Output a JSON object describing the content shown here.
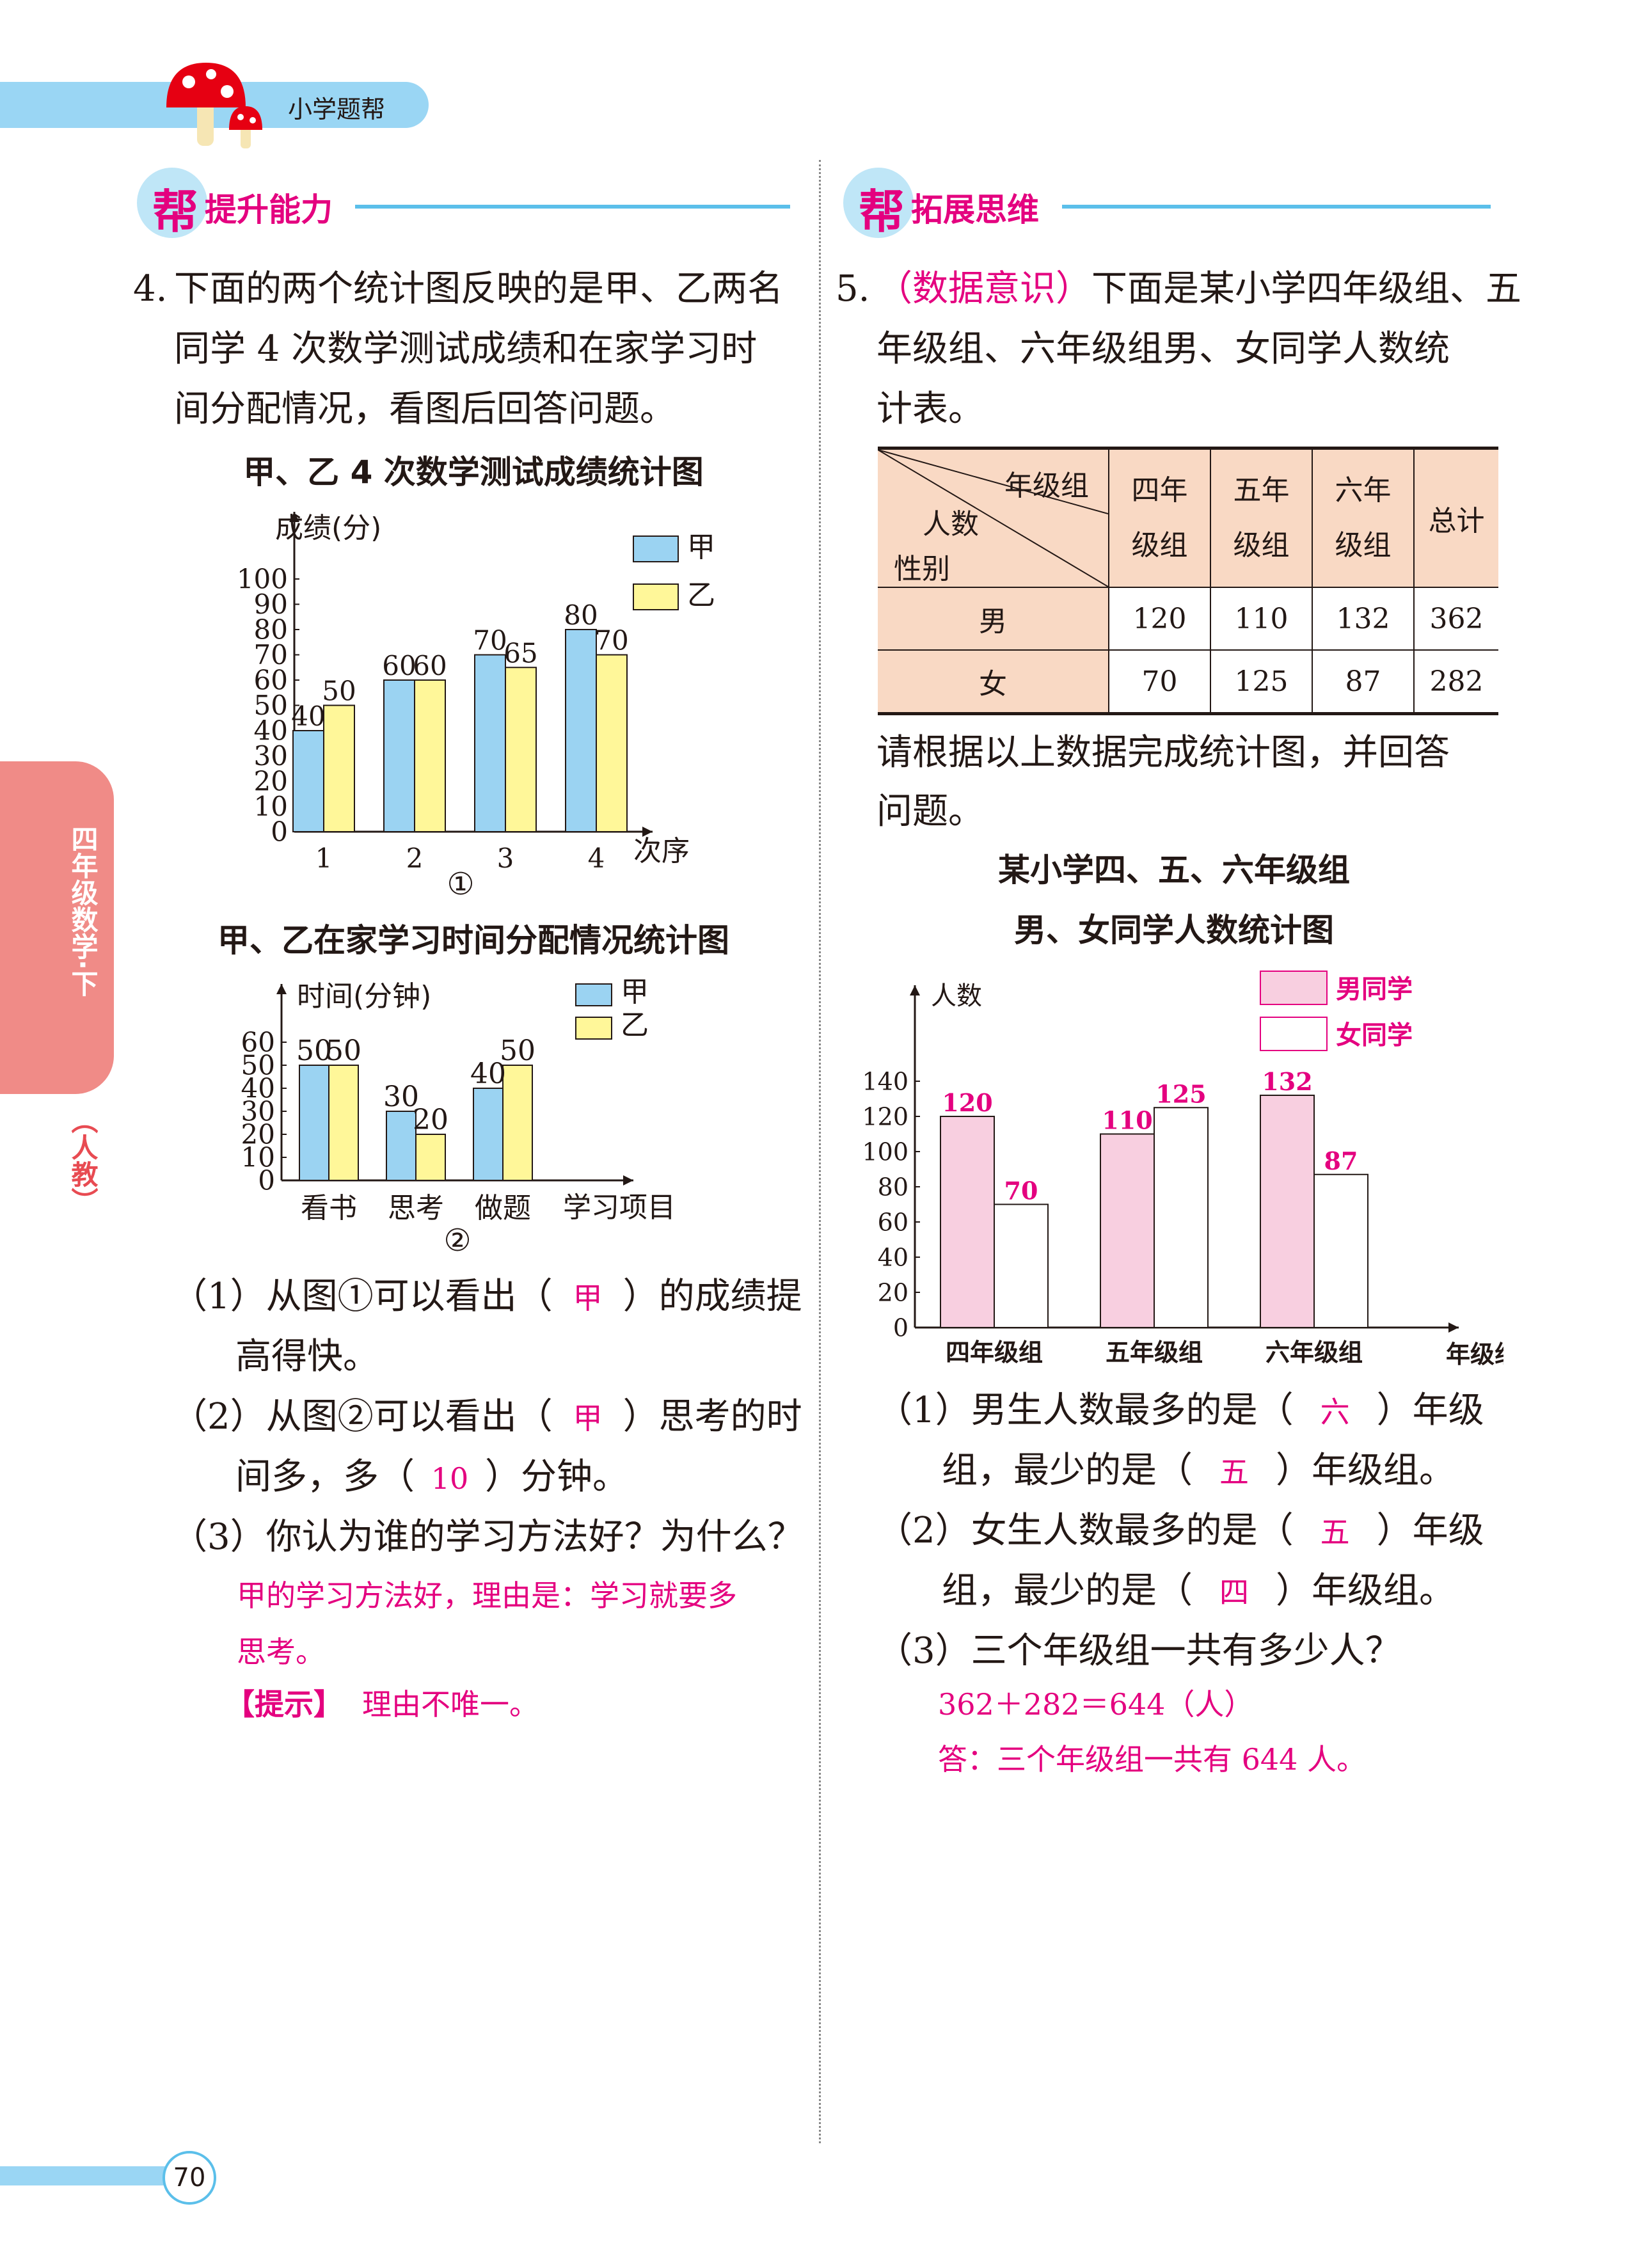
{
  "header": {
    "brand": "小学题帮"
  },
  "side_tab": {
    "grade": "四年级数学·下",
    "edition": "（人教）"
  },
  "sections": {
    "left_badge": "帮",
    "left_title": "提升能力",
    "right_badge": "帮",
    "right_title": "拓展思维"
  },
  "page_number": "70",
  "q4": {
    "num": "4.",
    "stem_lines": [
      "下面的两个统计图反映的是甲、乙两名",
      "同学 4 次数学测试成绩和在家学习时",
      "间分配情况，看图后回答问题。"
    ],
    "chart1": {
      "title": "甲、乙 4 次数学测试成绩统计图",
      "ylabel": "成绩(分)",
      "xlabel": "次序",
      "caption": "①",
      "legend": [
        "甲",
        "乙"
      ],
      "ticks": [
        "0",
        "10",
        "20",
        "30",
        "40",
        "50",
        "60",
        "70",
        "80",
        "90",
        "100"
      ],
      "categories": [
        "1",
        "2",
        "3",
        "4"
      ],
      "jia": [
        "40",
        "60",
        "70",
        "80"
      ],
      "yi": [
        "50",
        "60",
        "65",
        "70"
      ]
    },
    "chart2": {
      "title": "甲、乙在家学习时间分配情况统计图",
      "ylabel": "时间(分钟)",
      "xlabel": "学习项目",
      "caption": "②",
      "legend": [
        "甲",
        "乙"
      ],
      "ticks": [
        "0",
        "10",
        "20",
        "30",
        "40",
        "50",
        "60"
      ],
      "categories": [
        "看书",
        "思考",
        "做题"
      ],
      "jia": [
        "50",
        "30",
        "40"
      ],
      "yi": [
        "50",
        "20",
        "50"
      ]
    },
    "sub1": {
      "pre": "（1）从图①可以看出（",
      "ans": "甲",
      "post": "）的成绩提",
      "line2": "高得快。"
    },
    "sub2": {
      "pre": "（2）从图②可以看出（",
      "ans": "甲",
      "post": "）思考的时",
      "line2a": "间多，多（",
      "ans2": "10",
      "line2b": "）分钟。"
    },
    "sub3": {
      "text": "（3）你认为谁的学习方法好？为什么？",
      "ans1": "甲的学习方法好，理由是：学习就要多",
      "ans2": "思考。",
      "hint_label": "【提示】",
      "hint": "理由不唯一。"
    }
  },
  "q5": {
    "num": "5.",
    "tag": "（数据意识）",
    "stem_lines": [
      "下面是某小学四年级组、五",
      "年级组、六年级组男、女同学人数统",
      "计表。"
    ],
    "table": {
      "diag": [
        "年级组",
        "人数",
        "性别"
      ],
      "head": [
        "四年\n级组",
        "五年\n级组",
        "六年\n级组",
        "总计"
      ],
      "rows": [
        [
          "男",
          "120",
          "110",
          "132",
          "362"
        ],
        [
          "女",
          "70",
          "125",
          "87",
          "282"
        ]
      ]
    },
    "instr_lines": [
      "请根据以上数据完成统计图，并回答",
      "问题。"
    ],
    "chart": {
      "title1": "某小学四、五、六年级组",
      "title2": "男、女同学人数统计图",
      "ylabel": "人数",
      "xlabel": "年级组",
      "legend": [
        "男同学",
        "女同学"
      ],
      "ticks": [
        "0",
        "20",
        "40",
        "60",
        "80",
        "100",
        "120",
        "140"
      ],
      "categories": [
        "四年级组",
        "五年级组",
        "六年级组"
      ],
      "boys": [
        "120",
        "110",
        "132"
      ],
      "girls": [
        "70",
        "125",
        "87"
      ]
    },
    "sub1": {
      "pre": "（1）男生人数最多的是（",
      "ans": "六",
      "post": "）年级",
      "l2a": "组，最少的是（",
      "ans2": "五",
      "l2b": "）年级组。"
    },
    "sub2": {
      "pre": "（2）女生人数最多的是（",
      "ans": "五",
      "post": "）年级",
      "l2a": "组，最少的是（",
      "ans2": "四",
      "l2b": "）年级组。"
    },
    "sub3": {
      "text": "（3）三个年级组一共有多少人？",
      "calc": "362＋282＝644（人）",
      "answer": "答：三个年级组一共有 644 人。"
    }
  },
  "colors": {
    "blue": "#9bd3f2",
    "yellow": "#fff799",
    "pink": "#f8cfe0",
    "accent": "#e4007f",
    "bar_blue": "#7ecef4"
  }
}
